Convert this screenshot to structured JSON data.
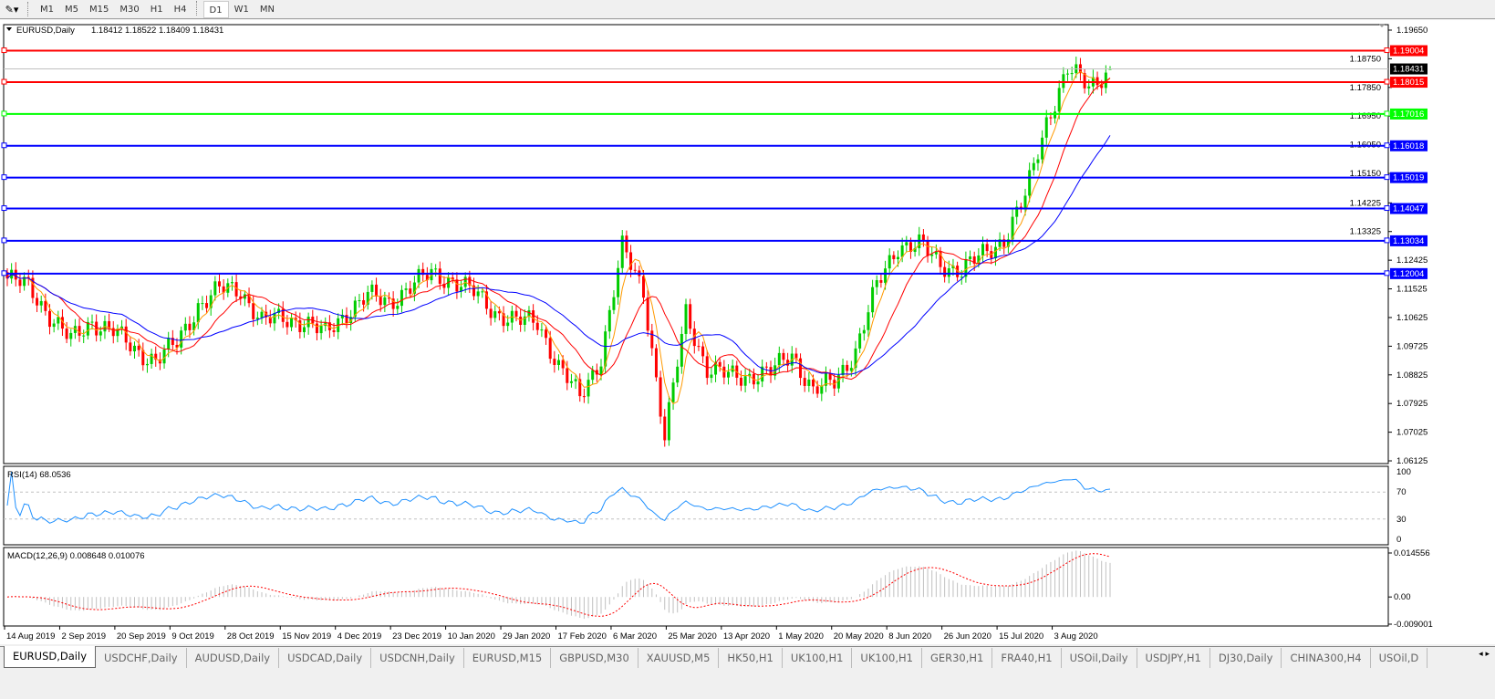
{
  "toolbar": {
    "timeframes": [
      "M1",
      "M5",
      "M15",
      "M30",
      "H1",
      "H4",
      "D1",
      "W1",
      "MN"
    ],
    "active": "D1"
  },
  "chart_header": {
    "symbol": "EURUSD,Daily",
    "ohlc": "1.18412 1.18522 1.18409 1.18431"
  },
  "colors": {
    "bull": "#00cc00",
    "bear": "#ff0000",
    "ma_fast": "#ff9900",
    "ma_mid": "#ff0000",
    "ma_slow": "#0000ff",
    "rsi": "#1e90ff",
    "macd_hist": "#c0c0c0",
    "macd_signal": "#ff0000",
    "support_red": "#ff0000",
    "support_green": "#00ff00",
    "support_blue": "#0000ff"
  },
  "chart_data": {
    "type": "candlestick",
    "x_tick_labels": [
      "14 Aug 2019",
      "2 Sep 2019",
      "20 Sep 2019",
      "9 Oct 2019",
      "28 Oct 2019",
      "15 Nov 2019",
      "4 Dec 2019",
      "23 Dec 2019",
      "10 Jan 2020",
      "29 Jan 2020",
      "17 Feb 2020",
      "6 Mar 2020",
      "25 Mar 2020",
      "13 Apr 2020",
      "1 May 2020",
      "20 May 2020",
      "8 Jun 2020",
      "26 Jun 2020",
      "15 Jul 2020",
      "3 Aug 2020"
    ],
    "price_ticks": [
      "1.19650",
      "1.18750",
      "1.17850",
      "1.16950",
      "1.16050",
      "1.15150",
      "1.14225",
      "1.13325",
      "1.12425",
      "1.11525",
      "1.10625",
      "1.09725",
      "1.08825",
      "1.07925",
      "1.07025",
      "1.06125"
    ],
    "ylim": [
      1.06125,
      1.1965
    ],
    "weekly_close": [
      1.1185,
      1.116,
      1.107,
      1.099,
      1.105,
      1.102,
      1.096,
      1.093,
      1.098,
      1.11,
      1.115,
      1.115,
      1.105,
      1.106,
      1.105,
      1.101,
      1.108,
      1.113,
      1.111,
      1.116,
      1.12,
      1.118,
      1.114,
      1.108,
      1.105,
      1.105,
      1.091,
      1.081,
      1.094,
      1.128,
      1.115,
      1.068,
      1.108,
      1.09,
      1.088,
      1.088,
      1.089,
      1.095,
      1.083,
      1.086,
      1.096,
      1.116,
      1.129,
      1.129,
      1.123,
      1.121,
      1.126,
      1.131,
      1.144,
      1.168,
      1.184,
      1.179,
      1.1843
    ],
    "last_bar": {
      "open": 1.18412,
      "high": 1.18522,
      "low": 1.18409,
      "close": 1.18431
    },
    "current_price": "1.18431",
    "levels": [
      {
        "price": "1.19004",
        "color": "red"
      },
      {
        "price": "1.18015",
        "color": "red"
      },
      {
        "price": "1.17016",
        "color": "green"
      },
      {
        "price": "1.16018",
        "color": "blue"
      },
      {
        "price": "1.15019",
        "color": "blue"
      },
      {
        "price": "1.14047",
        "color": "blue"
      },
      {
        "price": "1.13034",
        "color": "blue"
      },
      {
        "price": "1.12004",
        "color": "blue"
      }
    ],
    "rsi": {
      "label": "RSI(14) 68.0536",
      "ticks": [
        "100",
        "70",
        "30",
        "0"
      ],
      "levels": [
        70,
        30
      ]
    },
    "macd": {
      "label": "MACD(12,26,9) 0.008648 0.010076",
      "ticks": [
        "0.014556",
        "0.00",
        "-0.009001"
      ],
      "ylim": [
        -0.009001,
        0.014556
      ]
    }
  },
  "tabs": [
    "EURUSD,Daily",
    "USDCHF,Daily",
    "AUDUSD,Daily",
    "USDCAD,Daily",
    "USDCNH,Daily",
    "EURUSD,M15",
    "GBPUSD,M30",
    "XAUUSD,M5",
    "HK50,H1",
    "UK100,H1",
    "UK100,H1",
    "GER30,H1",
    "FRA40,H1",
    "USOil,Daily",
    "USDJPY,H1",
    "DJ30,Daily",
    "CHINA300,H4",
    "USOil,D"
  ],
  "active_tab": "EURUSD,Daily"
}
